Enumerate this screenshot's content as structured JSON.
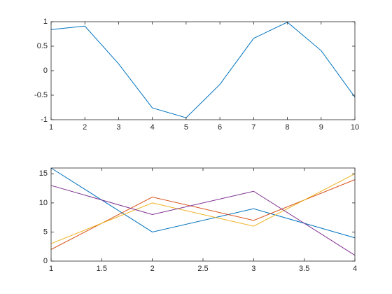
{
  "chart_data": [
    {
      "type": "line",
      "x": [
        1,
        2,
        3,
        4,
        5,
        6,
        7,
        8,
        9,
        10
      ],
      "series": [
        {
          "color": "#0072bd",
          "values": [
            0.84,
            0.91,
            0.14,
            -0.76,
            -0.96,
            -0.28,
            0.66,
            0.99,
            0.41,
            -0.54
          ]
        }
      ],
      "xlim": [
        1,
        10
      ],
      "xticks": [
        1,
        2,
        3,
        4,
        5,
        6,
        7,
        8,
        9,
        10
      ],
      "ylim": [
        -1,
        1
      ],
      "yticks": [
        -1,
        -0.5,
        0,
        0.5,
        1
      ]
    },
    {
      "type": "line",
      "x": [
        1,
        2,
        3,
        4
      ],
      "series": [
        {
          "color": "#0072bd",
          "values": [
            16,
            5,
            9,
            4
          ]
        },
        {
          "color": "#d95319",
          "values": [
            2,
            11,
            7,
            14
          ]
        },
        {
          "color": "#edb120",
          "values": [
            3,
            10,
            6,
            15
          ]
        },
        {
          "color": "#7e2f8e",
          "values": [
            13,
            8,
            12,
            1
          ]
        }
      ],
      "xlim": [
        1,
        4
      ],
      "xticks": [
        1,
        1.5,
        2,
        2.5,
        3,
        3.5,
        4
      ],
      "ylim": [
        0,
        16
      ],
      "yticks": [
        0,
        5,
        10,
        15
      ]
    }
  ]
}
